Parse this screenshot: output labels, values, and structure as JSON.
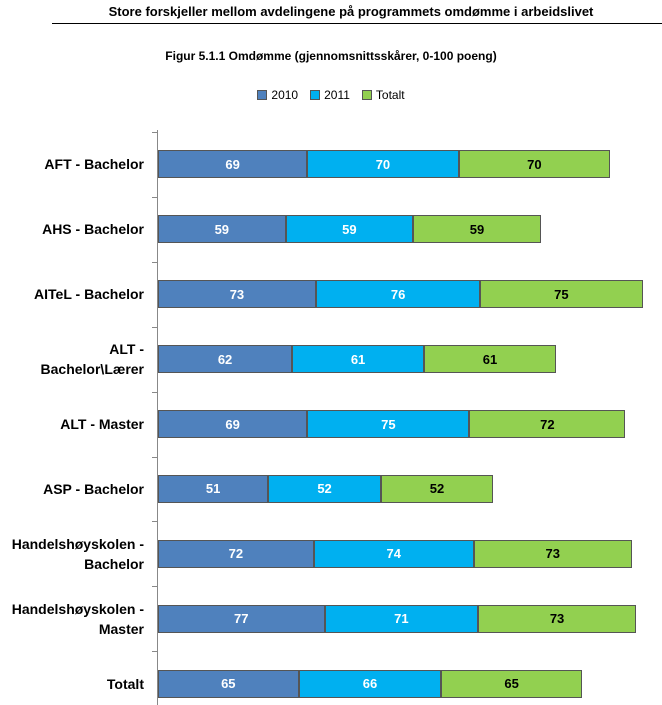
{
  "chart_data": {
    "type": "bar",
    "orientation": "horizontal",
    "stacked": true,
    "title": "Store forskjeller mellom avdelingene på programmets omdømme i arbeidslivet",
    "subtitle": "Figur 5.1.1 Omdømme (gjennomsnittsskårer, 0-100 poeng)",
    "categories": [
      "AFT - Bachelor",
      "AHS - Bachelor",
      "AITeL - Bachelor",
      "ALT - Bachelor\\Lærer",
      "ALT - Master",
      "ASP - Bachelor",
      "Handelshøyskolen - Bachelor",
      "Handelshøyskolen - Master",
      "Totalt"
    ],
    "series": [
      {
        "name": "2010",
        "color": "#4f81bd",
        "values": [
          69,
          59,
          73,
          62,
          69,
          51,
          72,
          77,
          65
        ]
      },
      {
        "name": "2011",
        "color": "#00b0f0",
        "values": [
          70,
          59,
          76,
          61,
          75,
          52,
          74,
          71,
          66
        ]
      },
      {
        "name": "Totalt",
        "color": "#92d050",
        "values": [
          70,
          59,
          75,
          61,
          72,
          52,
          73,
          73,
          65
        ]
      }
    ],
    "legend": "top"
  }
}
